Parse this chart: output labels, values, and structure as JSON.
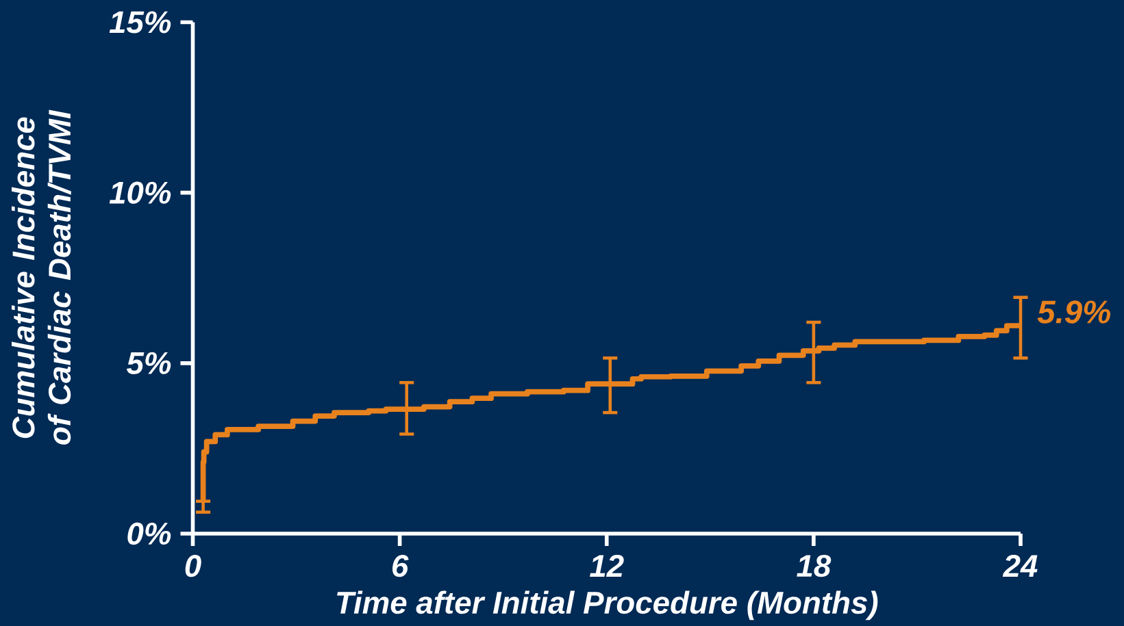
{
  "chart_data": {
    "type": "step",
    "xlabel": "Time after Initial Procedure (Months)",
    "ylabel": "Cumulative Incidence of Cardiac Death/TVMI",
    "xlim": [
      0,
      24
    ],
    "xticks": [
      0,
      6,
      12,
      18,
      24
    ],
    "ylim": [
      0,
      15
    ],
    "yticks": [
      {
        "value": 0,
        "label": "0%"
      },
      {
        "value": 5,
        "label": "5%"
      },
      {
        "value": 10,
        "label": "10%"
      },
      {
        "value": 15,
        "label": "15%"
      }
    ],
    "grid": false,
    "marker": "none",
    "line_style": "solid",
    "series": [
      {
        "color": "#e8821e",
        "x": [
          0.3,
          0.3,
          0.32,
          0.4,
          0.65,
          1.0,
          1.9,
          2.9,
          3.55,
          4.1,
          5.1,
          5.6,
          6.2,
          6.7,
          7.45,
          8.1,
          8.65,
          9.7,
          10.75,
          11.45,
          12.1,
          12.75,
          13.0,
          13.85,
          14.9,
          15.9,
          16.4,
          17.0,
          17.7,
          18.0,
          18.15,
          18.6,
          19.2,
          21.2,
          22.2,
          22.95,
          23.3,
          23.6,
          24.0
        ],
        "values": [
          0.95,
          2.1,
          2.4,
          2.7,
          2.9,
          3.05,
          3.15,
          3.3,
          3.45,
          3.55,
          3.6,
          3.65,
          3.65,
          3.72,
          3.87,
          3.97,
          4.1,
          4.16,
          4.2,
          4.39,
          4.39,
          4.54,
          4.6,
          4.62,
          4.77,
          4.92,
          5.06,
          5.23,
          5.36,
          5.36,
          5.44,
          5.53,
          5.63,
          5.67,
          5.78,
          5.82,
          5.95,
          6.1,
          6.1
        ],
        "errors": [
          [
            0.63,
            0.95
          ],
          null,
          null,
          null,
          null,
          null,
          null,
          null,
          null,
          null,
          null,
          null,
          [
            2.92,
            4.43
          ],
          null,
          null,
          null,
          null,
          null,
          null,
          null,
          [
            3.55,
            5.15
          ],
          null,
          null,
          null,
          null,
          null,
          null,
          null,
          null,
          [
            4.43,
            6.2
          ],
          null,
          null,
          null,
          null,
          null,
          null,
          null,
          null,
          [
            5.15,
            6.93
          ]
        ]
      }
    ],
    "annotations": [
      {
        "text": "5.9%",
        "x": 24,
        "y": 5.9
      }
    ]
  }
}
